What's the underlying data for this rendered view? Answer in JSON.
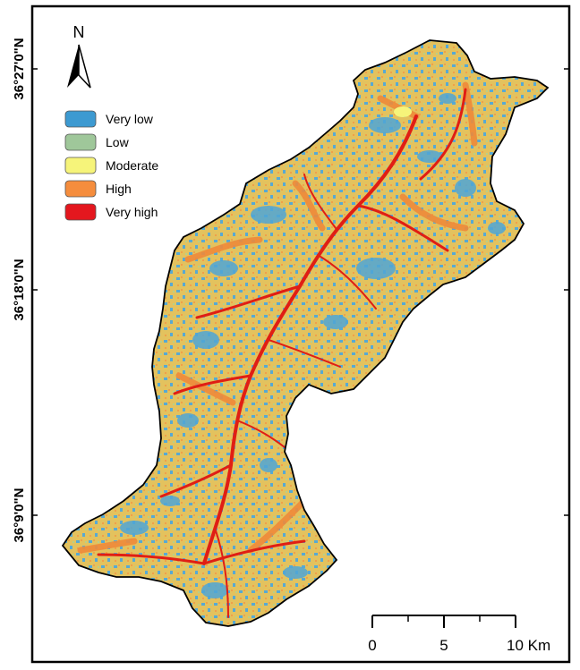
{
  "map": {
    "latitude_labels": [
      "36°27'0\"N",
      "36°18'0\"N",
      "36°9'0\"N"
    ],
    "north_arrow": {
      "label": "N",
      "icon": "north-arrow-icon"
    },
    "legend": [
      {
        "label": "Very low",
        "color": "#3d9ad1"
      },
      {
        "label": "Low",
        "color": "#9fc79a"
      },
      {
        "label": "Moderate",
        "color": "#f6f47a"
      },
      {
        "label": "High",
        "color": "#f58d3d"
      },
      {
        "label": "Very high",
        "color": "#e4171e"
      }
    ],
    "scale_bar": {
      "ticks": [
        "0",
        "5",
        "10 Km"
      ]
    },
    "basin_fill_colors": {
      "base": "#e6c86a",
      "very_low": "#4fa6d6",
      "high": "#ee8a3a",
      "very_high": "#e01e14"
    }
  }
}
